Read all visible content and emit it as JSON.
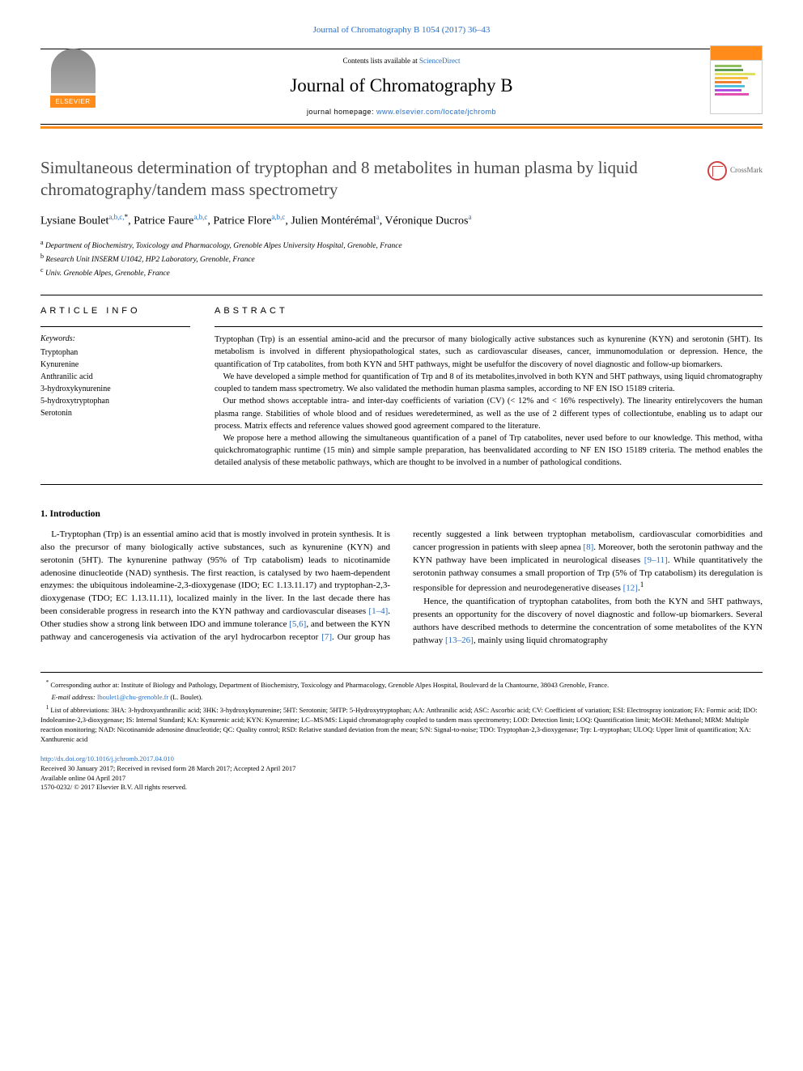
{
  "header": {
    "top_citation": "Journal of Chromatography B 1054 (2017) 36–43",
    "contents_prefix": "Contents lists available at ",
    "contents_link": "ScienceDirect",
    "journal_title": "Journal of Chromatography B",
    "homepage_prefix": "journal homepage: ",
    "homepage_link": "www.elsevier.com/locate/jchromb",
    "publisher_label": "ELSEVIER",
    "crossmark_label": "CrossMark"
  },
  "colors": {
    "orange": "#ff8c1a",
    "link": "#2a6fc4",
    "title_gray": "#4a4a4a",
    "cover_bars": [
      "#8fbf5f",
      "#5f9f4f",
      "#e0e060",
      "#f7c040",
      "#f08030",
      "#50c0e0",
      "#b050e0",
      "#e050b0"
    ]
  },
  "article": {
    "title": "Simultaneous determination of tryptophan and 8 metabolites in human plasma by liquid chromatography/tandem mass spectrometry",
    "authors_html": "Lysiane Boulet<sup>a,b,c,</sup><sup class=\"star\">*</sup>, Patrice Faure<sup>a,b,c</sup>, Patrice Flore<sup>a,b,c</sup>, Julien Montérémal<sup>a</sup>, Véronique Ducros<sup>a</sup>",
    "affiliations": [
      {
        "marker": "a",
        "text": "Department of Biochemistry, Toxicology and Pharmacology, Grenoble Alpes University Hospital, Grenoble, France"
      },
      {
        "marker": "b",
        "text": "Research Unit INSERM U1042, HP2 Laboratory, Grenoble, France"
      },
      {
        "marker": "c",
        "text": "Univ. Grenoble Alpes, Grenoble, France"
      }
    ]
  },
  "info": {
    "heading": "ARTICLE INFO",
    "keywords_label": "Keywords:",
    "keywords": [
      "Tryptophan",
      "Kynurenine",
      "Anthranilic acid",
      "3-hydroxykynurenine",
      "5-hydroxytryptophan",
      "Serotonin"
    ]
  },
  "abstract": {
    "heading": "ABSTRACT",
    "paragraphs": [
      "Tryptophan (Trp) is an essential amino-acid and the precursor of many biologically active substances such as kynurenine (KYN) and serotonin (5HT). Its metabolism is involved in different physiopathological states, such as cardiovascular diseases, cancer, immunomodulation or depression. Hence, the quantification of Trp catabolites, from both KYN and 5HT pathways, might be usefulfor the discovery of novel diagnostic and follow-up biomarkers.",
      "We have developed a simple method for quantification of Trp and 8 of its metabolites,involved in both KYN and 5HT pathways, using liquid chromatography coupled to tandem mass spectrometry. We also validated the methodin human plasma samples, according to NF EN ISO 15189 criteria.",
      "Our method shows acceptable intra- and inter-day coefficients of variation (CV) (< 12% and < 16% respectively). The linearity entirelycovers the human plasma range. Stabilities of whole blood and of residues weredetermined, as well as the use of 2 different types of collectiontube, enabling us to adapt our process. Matrix effects and reference values showed good agreement compared to the literature.",
      "We propose here a method allowing the simultaneous quantification of a panel of Trp catabolites, never used before to our knowledge. This method, witha quickchromatographic runtime (15 min) and simple sample preparation, has beenvalidated according to NF EN ISO 15189 criteria. The method enables the detailed analysis of these metabolic pathways, which are thought to be involved in a number of pathological conditions."
    ]
  },
  "introduction": {
    "heading": "1. Introduction",
    "body_parts": [
      "L-Tryptophan (Trp) is an essential amino acid that is mostly involved in protein synthesis. It is also the precursor of many biologically active substances, such as kynurenine (KYN) and serotonin (5HT). The kynurenine pathway (95% of Trp catabolism) leads to nicotinamide adenosine dinucleotide (NAD) synthesis. The first reaction, is catalysed by two haem-dependent enzymes: the ubiquitous indoleamine-2,3-dioxygenase (IDO; EC 1.13.11.17) and tryptophan-2,3-dioxygenase (TDO; EC 1.13.11.11), localized mainly in the liver. In the last decade there has been considerable progress in research into the KYN pathway and cardiovascular diseases ",
      ". Other studies show a strong link between IDO and immune tolerance ",
      ", and between the KYN pathway and cancerogenesis via activation of the aryl hydrocarbon receptor ",
      ". Our group has recently suggested a link between tryptophan metabolism, cardiovascular comorbidities and cancer progression in patients with sleep apnea ",
      ". Moreover, both the serotonin pathway and the KYN pathway have been implicated in neurological diseases ",
      ". While quantitatively the serotonin pathway consumes a small proportion of Trp (5% of Trp catabolism) its deregulation is responsible for depression and neurodegenerative diseases ",
      "."
    ],
    "refs": [
      "[1–4]",
      "[5,6]",
      "[7]",
      "[8]",
      "[9–11]",
      "[12]"
    ],
    "sup1": "1",
    "para2_parts": [
      "Hence, the quantification of tryptophan catabolites, from both the KYN and 5HT pathways, presents an opportunity for the discovery of novel diagnostic and follow-up biomarkers. Several authors have described methods to determine the concentration of some metabolites of the KYN pathway ",
      ", mainly using liquid chromatography"
    ],
    "refs2": [
      "[13–26]"
    ]
  },
  "footnotes": {
    "corresponding_marker": "*",
    "corresponding": "Corresponding author at: Institute of Biology and Pathology, Department of Biochemistry, Toxicology and Pharmacology, Grenoble Alpes Hospital, Boulevard de la Chantourne, 38043 Grenoble, France.",
    "email_label": "E-mail address: ",
    "email": "lboulet1@chu-grenoble.fr",
    "email_suffix": " (L. Boulet).",
    "abbrev_marker": "1",
    "abbrev": "List of abbreviations: 3HA: 3-hydroxyanthranilic acid; 3HK: 3-hydroxykynurenine; 5HT: Serotonin; 5HTP: 5-Hydroxytryptophan; AA: Anthranilic acid; ASC: Ascorbic acid; CV: Coefficient of variation; ESI: Electrospray ionization; FA: Formic acid; IDO: Indoleamine-2,3-dioxygenase; IS: Internal Standard; KA: Kynurenic acid; KYN: Kynurenine; LC–MS/MS: Liquid chromatography coupled to tandem mass spectrometry; LOD: Detection limit; LOQ: Quantification limit; MeOH: Methanol; MRM: Multiple reaction monitoring; NAD: Nicotinamide adenosine dinucleotide; QC: Quality control; RSD: Relative standard deviation from the mean; S/N: Signal-to-noise; TDO: Tryptophan-2,3-dioxygenase; Trp: L-tryptophan; ULOQ: Upper limit of quantification; XA: Xanthurenic acid"
  },
  "doi": {
    "link": "http://dx.doi.org/10.1016/j.jchromb.2017.04.010",
    "received": "Received 30 January 2017; Received in revised form 28 March 2017; Accepted 2 April 2017",
    "available": "Available online 04 April 2017",
    "issn": "1570-0232/ © 2017 Elsevier B.V. All rights reserved."
  }
}
